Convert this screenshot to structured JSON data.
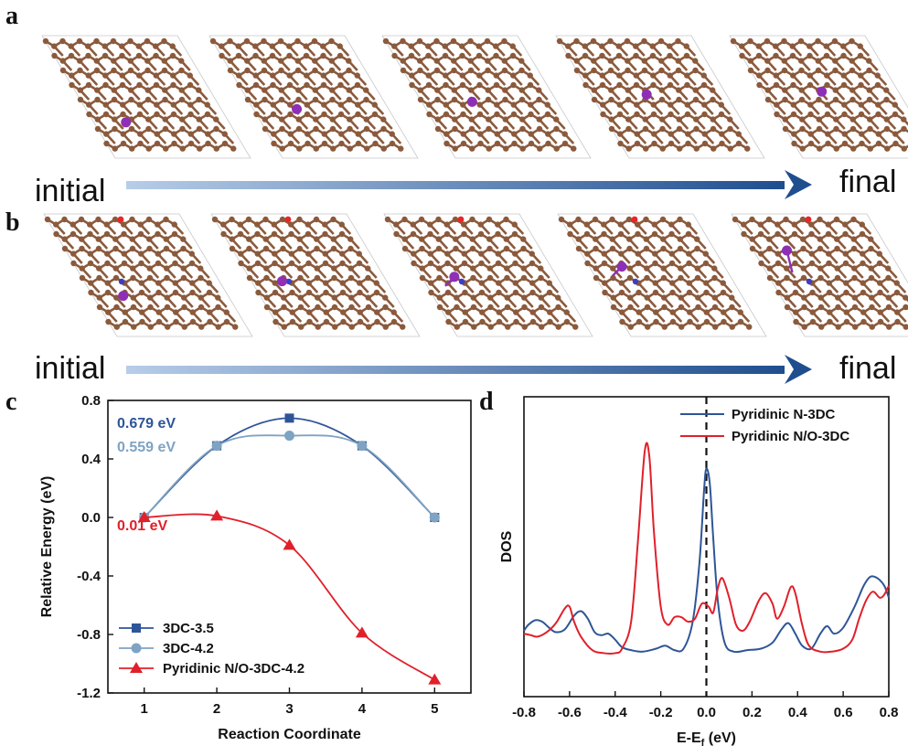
{
  "panel_a": {
    "letter": "a",
    "arrow_start": "initial",
    "arrow_end": "final",
    "snapshot_count": 5
  },
  "panel_b": {
    "letter": "b",
    "arrow_start": "initial",
    "arrow_end": "final",
    "snapshot_count": 5
  },
  "colors": {
    "carbon": "#8b5a3c",
    "dopant_atom": "#8e2fb5",
    "oxygen": "#e8262a",
    "nitrogen": "#3b3ec9",
    "arrow_light": "#b7cde8",
    "arrow_dark": "#1f4e8f"
  },
  "chart_data": [
    {
      "panel": "c",
      "type": "line",
      "xlabel": "Reaction Coordinate",
      "ylabel": "Relative Energy (eV)",
      "xlim": [
        0.5,
        5.5
      ],
      "ylim": [
        -1.2,
        0.8
      ],
      "xticks": [
        "1",
        "2",
        "3",
        "4",
        "5"
      ],
      "yticks": [
        "0.8",
        "0.4",
        "0.0",
        "-0.4",
        "-0.8",
        "-1.2"
      ],
      "x": [
        1,
        2,
        3,
        4,
        5
      ],
      "series": [
        {
          "name": "3DC-3.5",
          "values": [
            0.0,
            0.49,
            0.679,
            0.49,
            0.0
          ],
          "color": "#2e5597",
          "marker": "square"
        },
        {
          "name": "3DC-4.2",
          "values": [
            0.0,
            0.49,
            0.559,
            0.49,
            0.0
          ],
          "color": "#7fa3c2",
          "marker": "circle"
        },
        {
          "name": "Pyridinic N/O-3DC-4.2",
          "values": [
            0.0,
            0.01,
            -0.19,
            -0.79,
            -1.11
          ],
          "color": "#e0202a",
          "marker": "triangle"
        }
      ],
      "annotations": [
        {
          "text": "0.679 eV",
          "color": "#2e5597"
        },
        {
          "text": "0.559 eV",
          "color": "#7fa3c2"
        },
        {
          "text": "0.01 eV",
          "color": "#e0202a"
        }
      ],
      "legend": "bottom-left"
    },
    {
      "panel": "d",
      "type": "line",
      "xlabel": "E-E",
      "xlabel_sub": "f",
      "xlabel_unit": " (eV)",
      "ylabel": "DOS",
      "xlim": [
        -0.8,
        0.8
      ],
      "ylim": [
        0,
        1
      ],
      "xticks": [
        "-0.8",
        "-0.6",
        "-0.4",
        "-0.2",
        "0.0",
        "0.2",
        "0.4",
        "0.6",
        "0.8"
      ],
      "fermi_line_x": 0.0,
      "series": [
        {
          "name": "Pyridinic N-3DC",
          "color": "#2e5597",
          "points": [
            [
              -0.8,
              0.22
            ],
            [
              -0.78,
              0.24
            ],
            [
              -0.75,
              0.255
            ],
            [
              -0.72,
              0.25
            ],
            [
              -0.69,
              0.23
            ],
            [
              -0.66,
              0.215
            ],
            [
              -0.62,
              0.225
            ],
            [
              -0.58,
              0.27
            ],
            [
              -0.55,
              0.285
            ],
            [
              -0.52,
              0.26
            ],
            [
              -0.49,
              0.215
            ],
            [
              -0.46,
              0.205
            ],
            [
              -0.43,
              0.21
            ],
            [
              -0.4,
              0.19
            ],
            [
              -0.37,
              0.165
            ],
            [
              -0.33,
              0.155
            ],
            [
              -0.28,
              0.15
            ],
            [
              -0.22,
              0.16
            ],
            [
              -0.18,
              0.17
            ],
            [
              -0.14,
              0.155
            ],
            [
              -0.1,
              0.16
            ],
            [
              -0.06,
              0.25
            ],
            [
              -0.03,
              0.45
            ],
            [
              -0.01,
              0.69
            ],
            [
              0.0,
              0.76
            ],
            [
              0.015,
              0.71
            ],
            [
              0.03,
              0.53
            ],
            [
              0.05,
              0.32
            ],
            [
              0.08,
              0.18
            ],
            [
              0.12,
              0.15
            ],
            [
              0.18,
              0.155
            ],
            [
              0.24,
              0.16
            ],
            [
              0.29,
              0.18
            ],
            [
              0.33,
              0.225
            ],
            [
              0.36,
              0.245
            ],
            [
              0.39,
              0.21
            ],
            [
              0.42,
              0.17
            ],
            [
              0.46,
              0.16
            ],
            [
              0.5,
              0.21
            ],
            [
              0.53,
              0.235
            ],
            [
              0.56,
              0.21
            ],
            [
              0.6,
              0.23
            ],
            [
              0.65,
              0.3
            ],
            [
              0.69,
              0.37
            ],
            [
              0.72,
              0.4
            ],
            [
              0.75,
              0.395
            ],
            [
              0.78,
              0.37
            ],
            [
              0.8,
              0.33
            ]
          ]
        },
        {
          "name": "Pyridinic N/O-3DC",
          "color": "#e0202a",
          "points": [
            [
              -0.8,
              0.21
            ],
            [
              -0.77,
              0.205
            ],
            [
              -0.74,
              0.2
            ],
            [
              -0.7,
              0.215
            ],
            [
              -0.66,
              0.245
            ],
            [
              -0.62,
              0.295
            ],
            [
              -0.6,
              0.3
            ],
            [
              -0.58,
              0.25
            ],
            [
              -0.55,
              0.2
            ],
            [
              -0.5,
              0.155
            ],
            [
              -0.45,
              0.145
            ],
            [
              -0.4,
              0.145
            ],
            [
              -0.37,
              0.16
            ],
            [
              -0.33,
              0.25
            ],
            [
              -0.3,
              0.52
            ],
            [
              -0.27,
              0.82
            ],
            [
              -0.25,
              0.8
            ],
            [
              -0.23,
              0.55
            ],
            [
              -0.2,
              0.3
            ],
            [
              -0.17,
              0.24
            ],
            [
              -0.14,
              0.265
            ],
            [
              -0.11,
              0.265
            ],
            [
              -0.08,
              0.25
            ],
            [
              -0.05,
              0.26
            ],
            [
              -0.02,
              0.31
            ],
            [
              0.01,
              0.3
            ],
            [
              0.03,
              0.28
            ],
            [
              0.05,
              0.36
            ],
            [
              0.07,
              0.395
            ],
            [
              0.1,
              0.33
            ],
            [
              0.13,
              0.24
            ],
            [
              0.16,
              0.22
            ],
            [
              0.19,
              0.25
            ],
            [
              0.23,
              0.32
            ],
            [
              0.26,
              0.345
            ],
            [
              0.29,
              0.31
            ],
            [
              0.31,
              0.26
            ],
            [
              0.34,
              0.3
            ],
            [
              0.37,
              0.365
            ],
            [
              0.39,
              0.345
            ],
            [
              0.42,
              0.24
            ],
            [
              0.45,
              0.17
            ],
            [
              0.5,
              0.15
            ],
            [
              0.55,
              0.15
            ],
            [
              0.6,
              0.16
            ],
            [
              0.64,
              0.19
            ],
            [
              0.67,
              0.26
            ],
            [
              0.7,
              0.32
            ],
            [
              0.73,
              0.35
            ],
            [
              0.76,
              0.33
            ],
            [
              0.78,
              0.34
            ],
            [
              0.8,
              0.37
            ]
          ]
        }
      ],
      "legend": "top-right"
    }
  ]
}
